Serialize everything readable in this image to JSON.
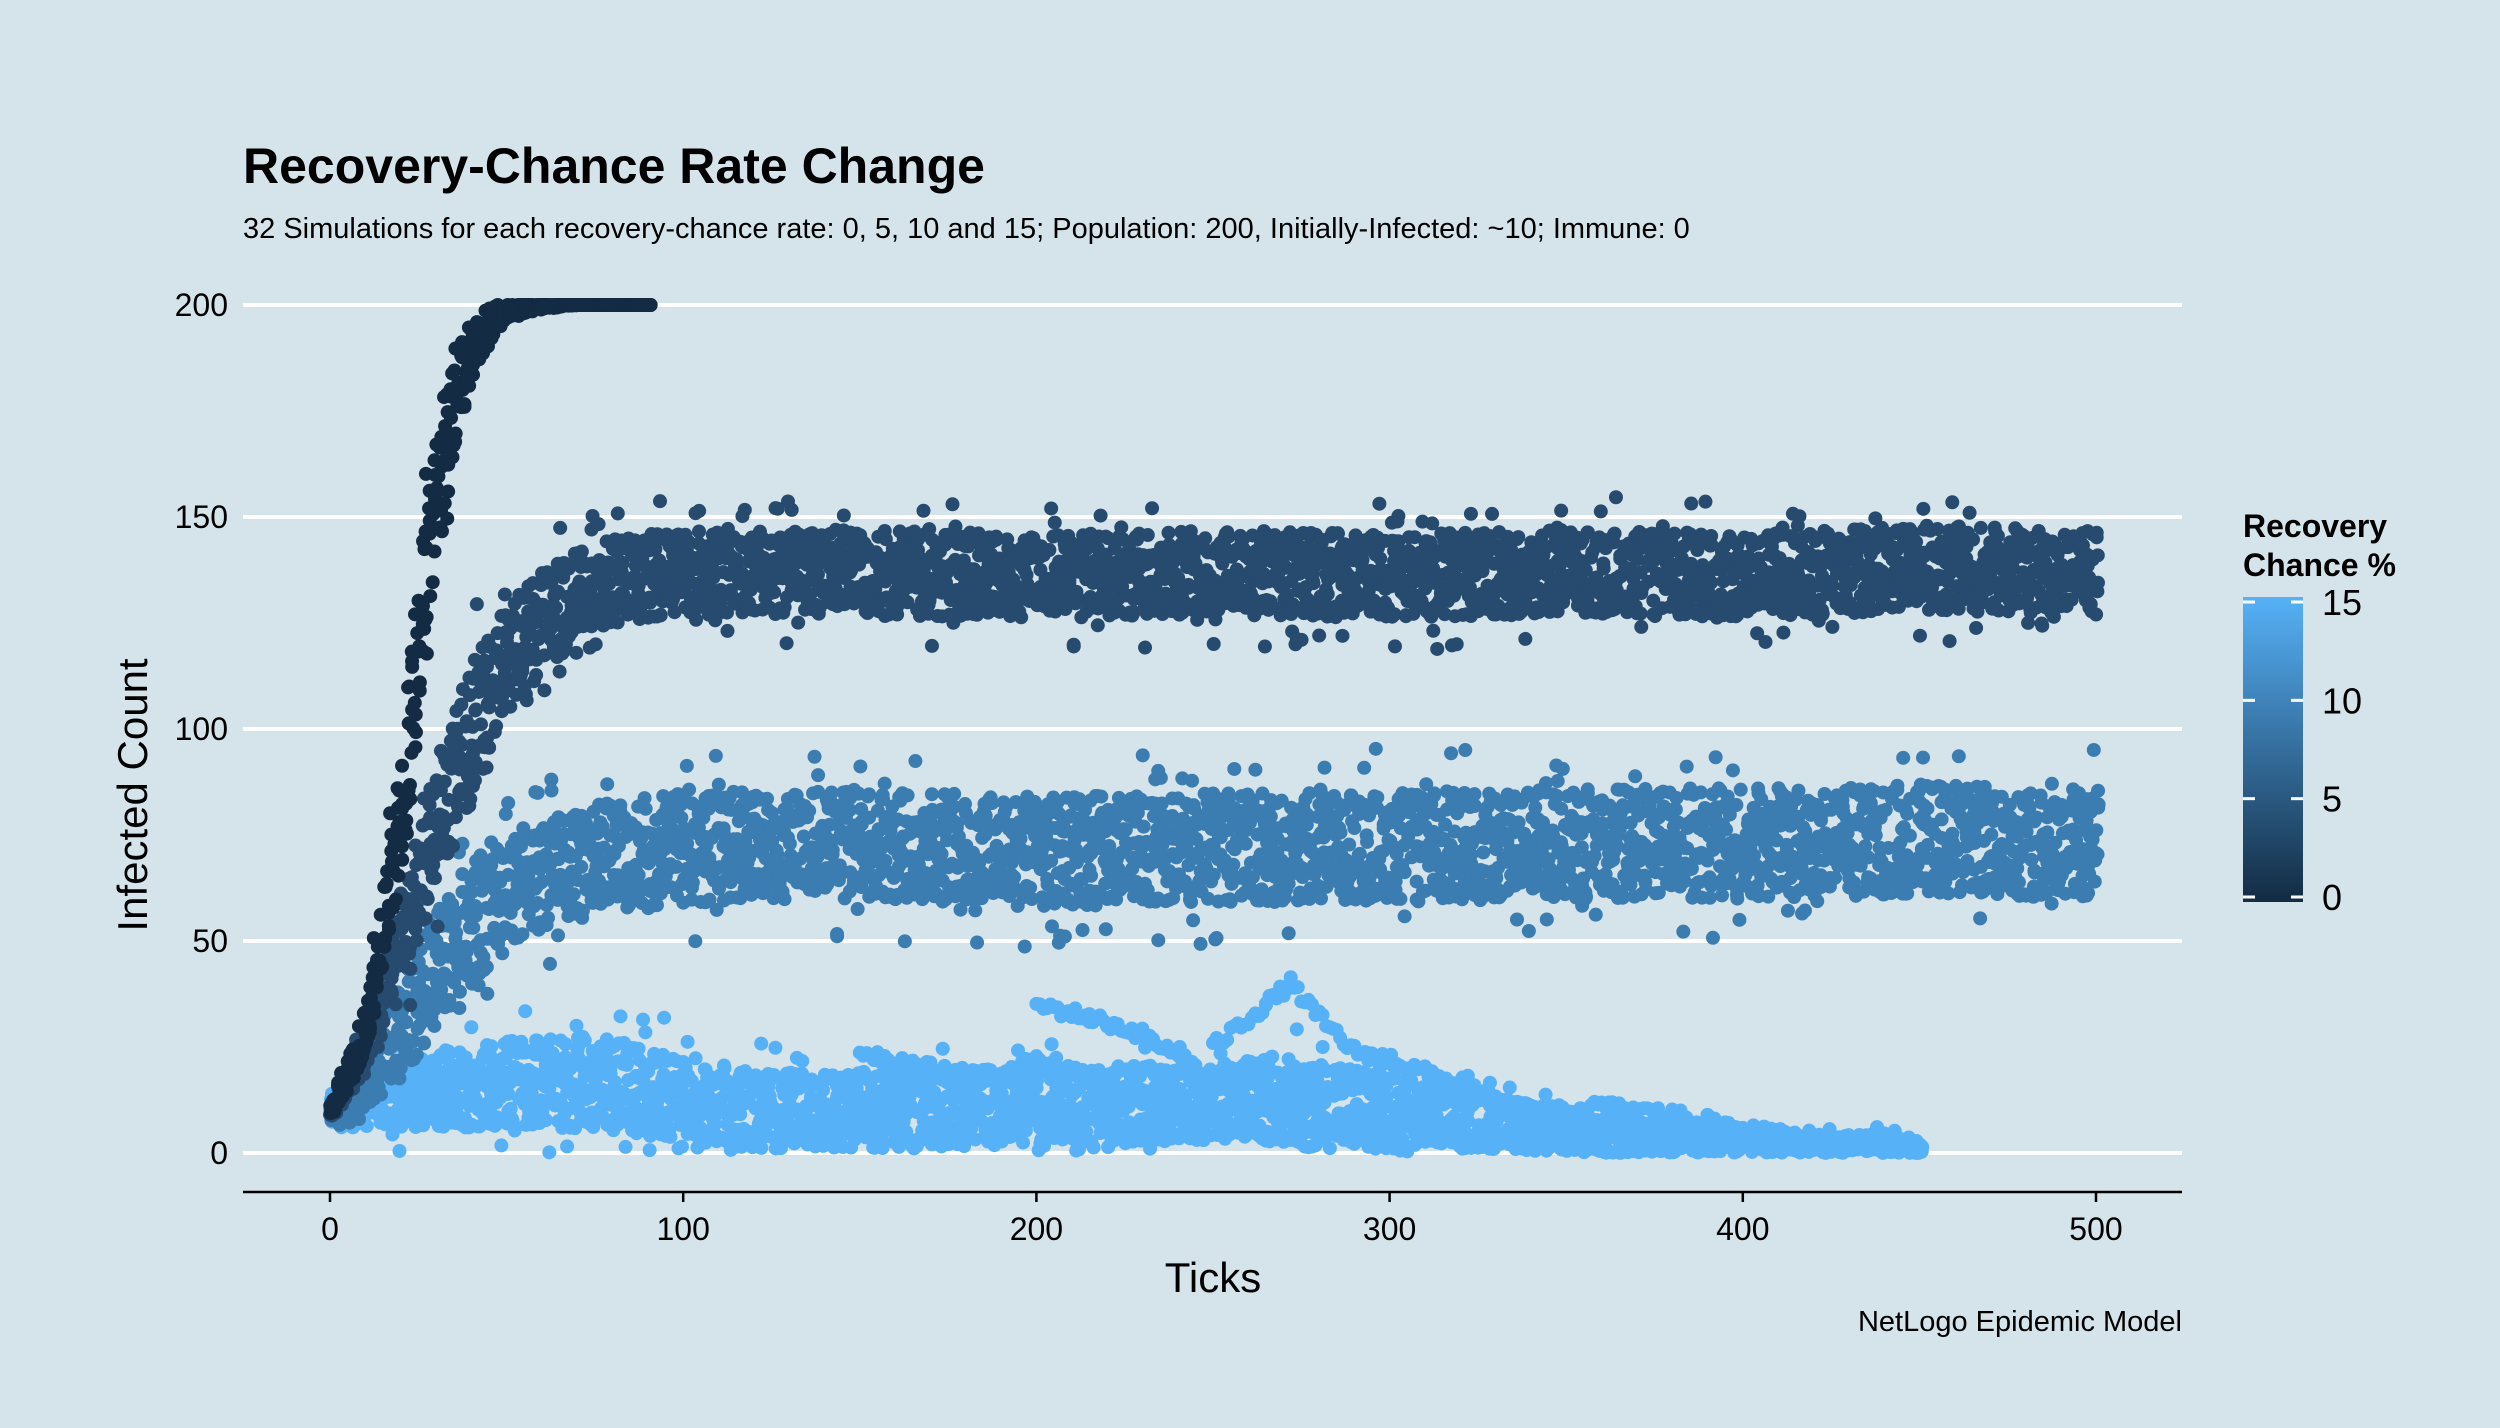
{
  "chart_data": {
    "type": "scatter",
    "title": "Recovery-Chance Rate Change",
    "subtitle": "32 Simulations for each recovery-chance rate: 0, 5, 10 and 15; Population: 200, Initially-Infected: ~10; Immune: 0",
    "caption": "NetLogo Epidemic Model",
    "xlabel": "Ticks",
    "ylabel": "Infected Count",
    "xlim": [
      -25,
      525
    ],
    "ylim": [
      0,
      200
    ],
    "x_ticks": [
      0,
      100,
      200,
      300,
      400,
      500
    ],
    "y_ticks": [
      0,
      50,
      100,
      150,
      200
    ],
    "legend": {
      "title_line1": "Recovery",
      "title_line2": "Chance %",
      "position": "right",
      "range": [
        0,
        15
      ],
      "labels": [
        "15",
        "10",
        "5",
        "0"
      ],
      "label_values": [
        15,
        10,
        5,
        0
      ],
      "color_low": "#132b43",
      "color_high": "#56b1f7"
    },
    "series": [
      {
        "name": "Recovery chance 0%",
        "recovery_chance": 0,
        "color": "#132b43",
        "x": [
          0,
          10,
          20,
          25,
          30,
          35,
          40,
          45,
          50,
          60,
          70,
          80,
          90
        ],
        "y_center": [
          10,
          30,
          80,
          120,
          155,
          178,
          190,
          196,
          199,
          200,
          200,
          200,
          200
        ],
        "spread": [
          2,
          6,
          12,
          18,
          16,
          12,
          8,
          4,
          2,
          1,
          0,
          0,
          0
        ]
      },
      {
        "name": "Recovery chance 5%",
        "recovery_chance": 5,
        "color": "#264b6e",
        "x": [
          0,
          10,
          20,
          30,
          40,
          50,
          60,
          70,
          80,
          100,
          150,
          200,
          250,
          300,
          350,
          400,
          450,
          500
        ],
        "y_center": [
          10,
          25,
          50,
          78,
          100,
          115,
          125,
          132,
          135,
          137,
          137,
          136,
          137,
          136,
          137,
          136,
          138,
          137
        ],
        "spread": [
          2,
          6,
          12,
          16,
          16,
          15,
          12,
          10,
          10,
          10,
          10,
          10,
          10,
          10,
          10,
          10,
          10,
          10
        ]
      },
      {
        "name": "Recovery chance 10%",
        "recovery_chance": 10,
        "color": "#3b7cb1",
        "x": [
          0,
          10,
          20,
          30,
          40,
          50,
          60,
          80,
          100,
          150,
          200,
          250,
          300,
          350,
          400,
          450,
          500
        ],
        "y_center": [
          10,
          18,
          30,
          44,
          55,
          62,
          66,
          70,
          72,
          73,
          71,
          72,
          72,
          73,
          73,
          74,
          73
        ],
        "spread": [
          3,
          7,
          12,
          14,
          15,
          14,
          13,
          13,
          13,
          13,
          13,
          13,
          13,
          13,
          13,
          13,
          13
        ]
      },
      {
        "name": "Recovery chance 15%",
        "recovery_chance": 15,
        "color": "#56b1f7",
        "x": [
          0,
          20,
          40,
          60,
          80,
          100,
          120,
          150,
          200,
          250,
          270,
          300,
          350,
          400,
          450
        ],
        "y_center": [
          10,
          14,
          16,
          17,
          16,
          13,
          10,
          10,
          11,
          12,
          14,
          10,
          5,
          3,
          1
        ],
        "spread": [
          4,
          8,
          10,
          11,
          11,
          10,
          9,
          9,
          9,
          9,
          9,
          8,
          5,
          3,
          1
        ]
      }
    ],
    "trajectories_15": [
      {
        "x": [
          200,
          215,
          230,
          245,
          260,
          275,
          290,
          305
        ],
        "y": [
          35,
          32,
          28,
          20,
          12,
          6,
          3,
          1
        ]
      },
      {
        "x": [
          250,
          265,
          272,
          280,
          290,
          300,
          320,
          340,
          360,
          380,
          400,
          420,
          440,
          450
        ],
        "y": [
          25,
          35,
          40,
          32,
          24,
          22,
          16,
          9,
          11,
          9,
          6,
          2,
          5,
          1
        ]
      },
      {
        "x": [
          150,
          170,
          190,
          200,
          220,
          240,
          260,
          280
        ],
        "y": [
          24,
          20,
          18,
          22,
          16,
          10,
          5,
          2
        ]
      }
    ],
    "trajectory_color": "#56b1f7",
    "points_per_tick": 6
  }
}
